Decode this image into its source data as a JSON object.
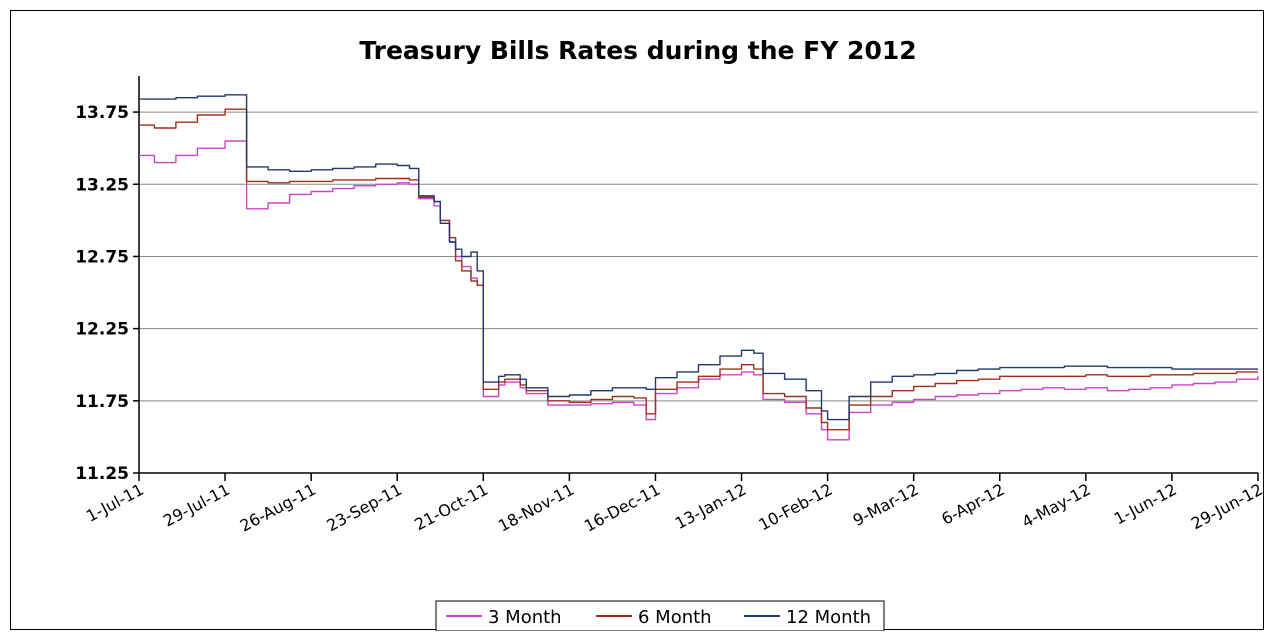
{
  "chart_data": {
    "type": "line",
    "title": "Treasury Bills Rates during the FY 2012",
    "xlabel": "",
    "ylabel": "",
    "ylim": [
      11.25,
      14.0
    ],
    "yticks": [
      "11.25",
      "11.75",
      "12.25",
      "12.75",
      "13.25",
      "13.75"
    ],
    "ytick_values": [
      11.25,
      11.75,
      12.25,
      12.75,
      13.25,
      13.75
    ],
    "x_ticks": [
      "1-Jul-11",
      "29-Jul-11",
      "26-Aug-11",
      "23-Sep-11",
      "21-Oct-11",
      "18-Nov-11",
      "16-Dec-11",
      "13-Jan-12",
      "10-Feb-12",
      "9-Mar-12",
      "6-Apr-12",
      "4-May-12",
      "1-Jun-12",
      "29-Jun-12"
    ],
    "grid": true,
    "legend_position": "bottom",
    "x": [
      "1-Jul-11",
      "6-Jul-11",
      "13-Jul-11",
      "20-Jul-11",
      "29-Jul-11",
      "3-Aug-11",
      "5-Aug-11",
      "12-Aug-11",
      "19-Aug-11",
      "26-Aug-11",
      "2-Sep-11",
      "9-Sep-11",
      "16-Sep-11",
      "23-Sep-11",
      "27-Sep-11",
      "30-Sep-11",
      "5-Oct-11",
      "7-Oct-11",
      "10-Oct-11",
      "12-Oct-11",
      "14-Oct-11",
      "17-Oct-11",
      "19-Oct-11",
      "21-Oct-11",
      "26-Oct-11",
      "28-Oct-11",
      "2-Nov-11",
      "4-Nov-11",
      "11-Nov-11",
      "18-Nov-11",
      "25-Nov-11",
      "2-Dec-11",
      "9-Dec-11",
      "13-Dec-11",
      "16-Dec-11",
      "23-Dec-11",
      "30-Dec-11",
      "6-Jan-12",
      "13-Jan-12",
      "17-Jan-12",
      "20-Jan-12",
      "27-Jan-12",
      "3-Feb-12",
      "8-Feb-12",
      "10-Feb-12",
      "13-Feb-12",
      "17-Feb-12",
      "24-Feb-12",
      "2-Mar-12",
      "9-Mar-12",
      "16-Mar-12",
      "23-Mar-12",
      "30-Mar-12",
      "6-Apr-12",
      "13-Apr-12",
      "20-Apr-12",
      "27-Apr-12",
      "4-May-12",
      "11-May-12",
      "18-May-12",
      "25-May-12",
      "1-Jun-12",
      "8-Jun-12",
      "15-Jun-12",
      "22-Jun-12",
      "29-Jun-12"
    ],
    "x_day": [
      0,
      5,
      12,
      19,
      28,
      33,
      35,
      42,
      49,
      56,
      63,
      70,
      77,
      84,
      88,
      91,
      96,
      98,
      101,
      103,
      105,
      108,
      110,
      112,
      117,
      119,
      124,
      126,
      133,
      140,
      147,
      154,
      161,
      165,
      168,
      175,
      182,
      189,
      196,
      200,
      203,
      210,
      217,
      222,
      224,
      227,
      231,
      238,
      245,
      252,
      259,
      266,
      273,
      280,
      287,
      294,
      301,
      308,
      315,
      322,
      329,
      336,
      343,
      350,
      357,
      364
    ],
    "series": [
      {
        "name": "3 Month",
        "color": "#cc44cc",
        "values": [
          13.45,
          13.4,
          13.45,
          13.5,
          13.55,
          13.55,
          13.08,
          13.12,
          13.18,
          13.2,
          13.22,
          13.24,
          13.25,
          13.26,
          13.25,
          13.15,
          13.1,
          13.0,
          12.85,
          12.75,
          12.68,
          12.6,
          12.55,
          11.78,
          11.86,
          11.88,
          11.84,
          11.8,
          11.72,
          11.72,
          11.73,
          11.74,
          11.72,
          11.62,
          11.8,
          11.84,
          11.9,
          11.93,
          11.95,
          11.93,
          11.76,
          11.74,
          11.66,
          11.55,
          11.48,
          11.48,
          11.67,
          11.72,
          11.74,
          11.76,
          11.78,
          11.79,
          11.8,
          11.82,
          11.83,
          11.84,
          11.83,
          11.84,
          11.82,
          11.83,
          11.84,
          11.86,
          11.87,
          11.88,
          11.9,
          11.92
        ]
      },
      {
        "name": "6 Month",
        "color": "#a0301a",
        "values": [
          13.66,
          13.64,
          13.68,
          13.73,
          13.77,
          13.77,
          13.27,
          13.26,
          13.27,
          13.27,
          13.28,
          13.28,
          13.29,
          13.29,
          13.28,
          13.16,
          13.13,
          13.0,
          12.88,
          12.72,
          12.65,
          12.58,
          12.55,
          11.83,
          11.88,
          11.9,
          11.86,
          11.82,
          11.75,
          11.74,
          11.76,
          11.78,
          11.77,
          11.66,
          11.83,
          11.88,
          11.92,
          11.97,
          12.0,
          11.97,
          11.8,
          11.78,
          11.7,
          11.6,
          11.55,
          11.55,
          11.72,
          11.78,
          11.82,
          11.85,
          11.87,
          11.89,
          11.9,
          11.92,
          11.92,
          11.92,
          11.92,
          11.93,
          11.92,
          11.92,
          11.93,
          11.93,
          11.94,
          11.94,
          11.95,
          11.95
        ]
      },
      {
        "name": "12 Month",
        "color": "#1f3a6e",
        "values": [
          13.84,
          13.84,
          13.85,
          13.86,
          13.87,
          13.87,
          13.37,
          13.35,
          13.34,
          13.35,
          13.36,
          13.37,
          13.39,
          13.38,
          13.36,
          13.17,
          13.13,
          12.98,
          12.85,
          12.8,
          12.75,
          12.78,
          12.65,
          11.88,
          11.92,
          11.93,
          11.9,
          11.84,
          11.78,
          11.79,
          11.82,
          11.84,
          11.84,
          11.83,
          11.91,
          11.95,
          12.0,
          12.06,
          12.1,
          12.08,
          11.94,
          11.9,
          11.82,
          11.68,
          11.62,
          11.62,
          11.78,
          11.88,
          11.92,
          11.93,
          11.94,
          11.96,
          11.97,
          11.98,
          11.98,
          11.98,
          11.99,
          11.99,
          11.98,
          11.98,
          11.98,
          11.97,
          11.97,
          11.97,
          11.97,
          11.97
        ]
      }
    ]
  }
}
